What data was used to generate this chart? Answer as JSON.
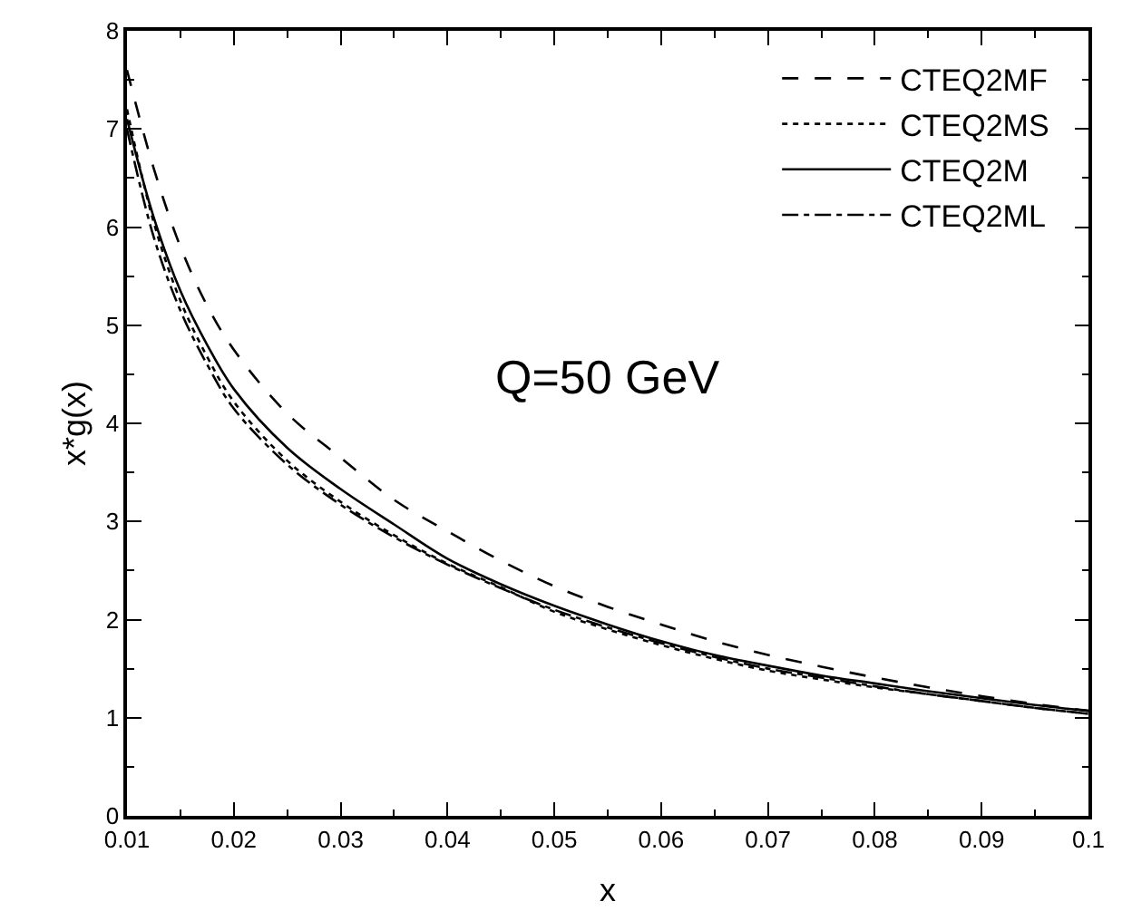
{
  "chart_data": {
    "type": "line",
    "xlabel": "x",
    "ylabel": "x*g(x)",
    "annotations": [
      "Q=50 GeV"
    ],
    "x": [
      0.01,
      0.0125,
      0.015,
      0.0175,
      0.02,
      0.025,
      0.03,
      0.035,
      0.04,
      0.045,
      0.05,
      0.055,
      0.06,
      0.065,
      0.07,
      0.075,
      0.08,
      0.085,
      0.09,
      0.095,
      0.1
    ],
    "series": [
      {
        "name": "CTEQ2MF",
        "color": "#000000",
        "line_style": "dashed",
        "values": [
          7.6,
          6.6,
          5.8,
          5.2,
          4.75,
          4.1,
          3.65,
          3.22,
          2.9,
          2.6,
          2.34,
          2.13,
          1.95,
          1.78,
          1.64,
          1.52,
          1.41,
          1.31,
          1.22,
          1.14,
          1.07
        ]
      },
      {
        "name": "CTEQ2MS",
        "color": "#000000",
        "line_style": "dotted",
        "values": [
          7.2,
          6.05,
          5.25,
          4.68,
          4.22,
          3.62,
          3.2,
          2.86,
          2.57,
          2.33,
          2.08,
          1.9,
          1.74,
          1.6,
          1.48,
          1.39,
          1.31,
          1.24,
          1.17,
          1.1,
          1.04
        ]
      },
      {
        "name": "CTEQ2M",
        "color": "#000000",
        "line_style": "solid",
        "values": [
          7.1,
          6.1,
          5.35,
          4.8,
          4.35,
          3.75,
          3.33,
          2.97,
          2.62,
          2.36,
          2.14,
          1.95,
          1.78,
          1.64,
          1.53,
          1.43,
          1.35,
          1.27,
          1.2,
          1.13,
          1.07
        ]
      },
      {
        "name": "CTEQ2ML",
        "color": "#000000",
        "line_style": "dashdot",
        "values": [
          7.0,
          5.9,
          5.15,
          4.6,
          4.15,
          3.58,
          3.17,
          2.84,
          2.56,
          2.32,
          2.1,
          1.92,
          1.76,
          1.62,
          1.5,
          1.41,
          1.32,
          1.24,
          1.17,
          1.1,
          1.04
        ]
      }
    ],
    "xlim": [
      0.01,
      0.1
    ],
    "xticks": [
      0.01,
      0.02,
      0.03,
      0.04,
      0.05,
      0.06,
      0.07,
      0.08,
      0.09,
      0.1
    ],
    "ylim": [
      0,
      8
    ],
    "yticks": [
      0,
      1,
      2,
      3,
      4,
      5,
      6,
      7,
      8
    ],
    "legend": "top right",
    "marker": "none"
  }
}
